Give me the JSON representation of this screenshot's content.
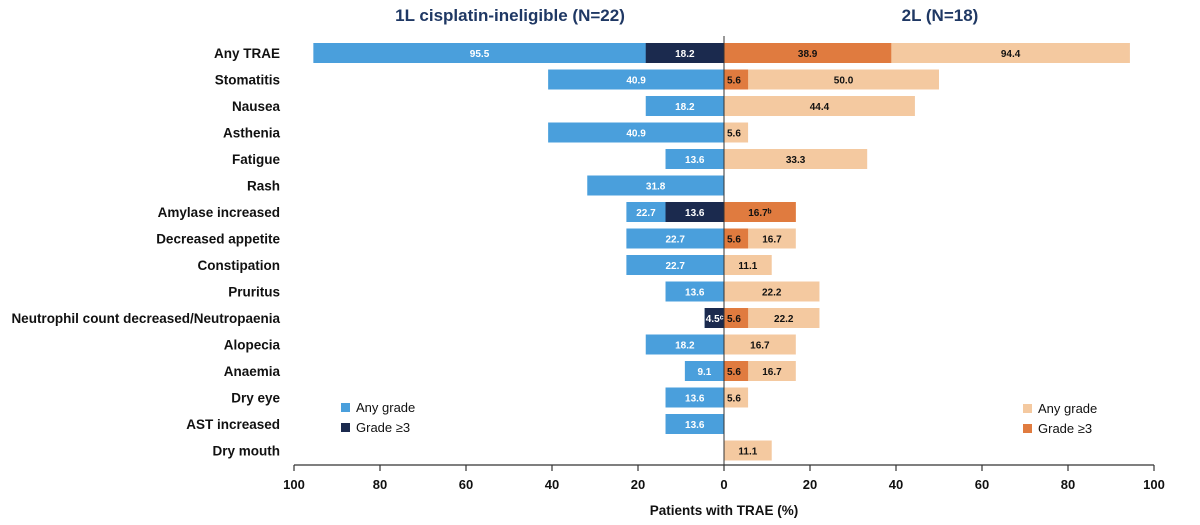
{
  "chart_data": {
    "type": "bar",
    "orientation": "horizontal-butterfly",
    "xlabel": "Patients with TRAE (%)",
    "x_ticks": [
      "100",
      "80",
      "60",
      "40",
      "20",
      "0",
      "20",
      "40",
      "60",
      "80",
      "100"
    ],
    "xlim": [
      0,
      100
    ],
    "categories": [
      "Any TRAE",
      "Stomatitis",
      "Nausea",
      "Asthenia",
      "Fatigue",
      "Rash",
      "Amylase increased",
      "Decreased appetite",
      "Constipation",
      "Pruritus",
      "Neutrophil count decreased/Neutropaenia",
      "Alopecia",
      "Anaemia",
      "Dry eye",
      "AST increased",
      "Dry mouth"
    ],
    "panels": [
      {
        "title": "1L cisplatin-ineligible (N=22)",
        "side": "left",
        "legend": [
          "Any grade",
          "Grade ≥3"
        ],
        "colors": {
          "any": "#4a9fdc",
          "grade3": "#1b2a4e"
        },
        "any_grade": [
          95.5,
          40.9,
          18.2,
          40.9,
          13.6,
          31.8,
          22.7,
          22.7,
          22.7,
          13.6,
          4.5,
          18.2,
          9.1,
          13.6,
          13.6,
          0
        ],
        "any_labels": [
          "95.5",
          "40.9",
          "18.2",
          "40.9",
          "13.6",
          "31.8",
          "22.7",
          "22.7",
          "22.7",
          "13.6",
          "",
          "18.2",
          "9.1",
          "13.6",
          "13.6",
          ""
        ],
        "grade3": [
          18.2,
          0,
          0,
          0,
          0,
          0,
          13.6,
          0,
          0,
          0,
          4.5,
          0,
          0,
          0,
          0,
          0
        ],
        "grade3_labels": [
          "18.2",
          "",
          "",
          "",
          "",
          "",
          "13.6",
          "",
          "",
          "",
          "4.5ᶜ",
          "",
          "",
          "",
          "",
          ""
        ]
      },
      {
        "title": "2L (N=18)",
        "side": "right",
        "legend": [
          "Any grade",
          "Grade ≥3"
        ],
        "colors": {
          "any": "#f4c9a0",
          "grade3": "#e07b3f"
        },
        "any_grade": [
          94.4,
          50.0,
          44.4,
          5.6,
          33.3,
          0,
          16.7,
          16.7,
          11.1,
          22.2,
          22.2,
          16.7,
          16.7,
          5.6,
          0,
          11.1
        ],
        "any_labels": [
          "94.4",
          "50.0",
          "44.4",
          "5.6",
          "33.3",
          "",
          "",
          "16.7",
          "11.1",
          "22.2",
          "22.2",
          "16.7",
          "16.7",
          "5.6",
          "",
          "11.1"
        ],
        "grade3": [
          38.9,
          5.6,
          0,
          0,
          0,
          0,
          16.7,
          5.6,
          0,
          0,
          5.6,
          0,
          5.6,
          0,
          0,
          0
        ],
        "grade3_labels": [
          "38.9",
          "5.6",
          "",
          "",
          "",
          "",
          "16.7ᵇ",
          "5.6",
          "",
          "",
          "5.6",
          "",
          "5.6",
          "",
          "",
          ""
        ]
      }
    ]
  }
}
